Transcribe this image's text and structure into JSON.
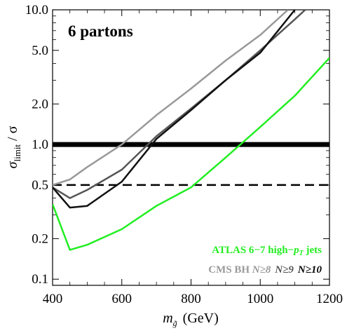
{
  "chart_data": {
    "type": "line",
    "panel_label": "6 partons",
    "xlabel": {
      "main": "m",
      "sub": "g̃",
      "unit": "(GeV)"
    },
    "ylabel": {
      "main": "σ",
      "sub": "limit",
      "tail": " / σ"
    },
    "xlim": [
      400,
      1200
    ],
    "ylim": [
      0.09,
      10.0
    ],
    "yscale": "log",
    "x_ticks": [
      400,
      600,
      800,
      1000,
      1200
    ],
    "x_tick_labels": [
      "400",
      "600",
      "800",
      "1000",
      "1200"
    ],
    "y_ticks": [
      0.1,
      0.2,
      0.5,
      1.0,
      2.0,
      5.0,
      10.0
    ],
    "y_tick_labels": [
      "0.1",
      "0.2",
      "0.5",
      "1.0",
      "2.0",
      "5.0",
      "10.0"
    ],
    "reference_lines": [
      {
        "y": 1.0,
        "style": "solid",
        "color": "#000000"
      },
      {
        "y": 0.5,
        "style": "dashed",
        "color": "#000000"
      }
    ],
    "series": [
      {
        "name": "ATLAS 6−7 high−pT jets",
        "color": "#22ee22",
        "x": [
          400,
          450,
          500,
          600,
          700,
          800,
          900,
          1000,
          1100,
          1200
        ],
        "y": [
          0.36,
          0.165,
          0.18,
          0.235,
          0.35,
          0.48,
          0.8,
          1.35,
          2.3,
          4.4
        ]
      },
      {
        "name": "CMS BH N≥8",
        "color": "#999999",
        "x": [
          400,
          450,
          500,
          600,
          700,
          800,
          900,
          1000,
          1080
        ],
        "y": [
          0.5,
          0.55,
          0.68,
          1.0,
          1.65,
          2.6,
          4.2,
          6.5,
          10.0
        ]
      },
      {
        "name": "N≥9",
        "color": "#555555",
        "x": [
          400,
          450,
          500,
          600,
          700,
          800,
          900,
          1000,
          1100,
          1130
        ],
        "y": [
          0.48,
          0.4,
          0.46,
          0.65,
          1.15,
          1.85,
          3.0,
          5.0,
          8.5,
          10.0
        ]
      },
      {
        "name": "N≥10",
        "color": "#111111",
        "x": [
          400,
          450,
          500,
          600,
          700,
          800,
          900,
          1000,
          1100
        ],
        "y": [
          0.48,
          0.34,
          0.35,
          0.53,
          1.1,
          1.8,
          3.0,
          4.8,
          10.0
        ]
      }
    ],
    "legend": {
      "line1": {
        "text": "ATLAS 6−7 high−",
        "pt_main": "p",
        "pt_sub": "T",
        "tail": " jets",
        "color": "#22ee22"
      },
      "line2": {
        "cms": "CMS BH ",
        "n8": "N≥8",
        "n9": "N≥9",
        "n10": "N≥10"
      }
    }
  }
}
